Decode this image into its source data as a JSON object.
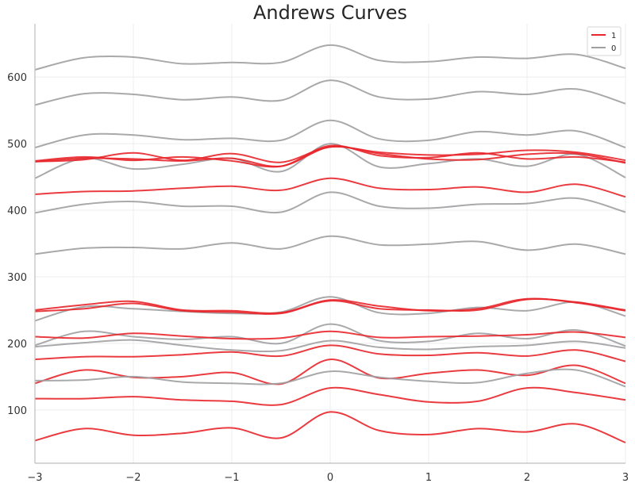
{
  "chart_data": {
    "type": "line",
    "title": "Andrews Curves",
    "xlabel": "",
    "ylabel": "",
    "xlim": [
      -3,
      3
    ],
    "ylim": [
      20,
      680
    ],
    "xticks": [
      -3,
      -2,
      -1,
      0,
      1,
      2,
      3
    ],
    "xtick_labels": [
      "−3",
      "−2",
      "−1",
      "0",
      "1",
      "2",
      "3"
    ],
    "yticks": [
      100,
      200,
      300,
      400,
      500,
      600
    ],
    "grid": true,
    "legend": {
      "position": "top-right",
      "entries": [
        {
          "label": "1",
          "color": "#e8262b"
        },
        {
          "label": "0",
          "color": "#a0a0a3"
        }
      ]
    },
    "x": [
      -3,
      -2.5,
      -2,
      -1.5,
      -1,
      -0.5,
      0,
      0.5,
      1,
      1.5,
      2,
      2.5,
      3
    ],
    "series": [
      {
        "class": "0",
        "color": "#a0a0a3",
        "values": [
          611,
          629,
          630,
          620,
          622,
          622,
          648,
          625,
          623,
          630,
          628,
          634,
          613
        ]
      },
      {
        "class": "0",
        "color": "#a0a0a3",
        "values": [
          558,
          575,
          574,
          566,
          570,
          565,
          595,
          570,
          567,
          578,
          574,
          582,
          560
        ]
      },
      {
        "class": "0",
        "color": "#a0a0a3",
        "values": [
          494,
          513,
          513,
          506,
          508,
          505,
          535,
          507,
          505,
          518,
          513,
          519,
          494
        ]
      },
      {
        "class": "0",
        "color": "#a0a0a3",
        "values": [
          448,
          478,
          462,
          469,
          478,
          458,
          500,
          465,
          470,
          477,
          466,
          484,
          449
        ]
      },
      {
        "class": "1",
        "color": "#e8262b",
        "values": [
          473,
          476,
          486,
          475,
          485,
          472,
          495,
          487,
          483,
          484,
          490,
          487,
          475
        ]
      },
      {
        "class": "1",
        "color": "#e8262b",
        "values": [
          473,
          478,
          477,
          474,
          478,
          466,
          495,
          485,
          477,
          476,
          484,
          485,
          471
        ]
      },
      {
        "class": "1",
        "color": "#e8262b",
        "values": [
          474,
          480,
          475,
          480,
          474,
          466,
          497,
          482,
          479,
          486,
          477,
          480,
          472
        ]
      },
      {
        "class": "1",
        "color": "#e8262b",
        "values": [
          424,
          428,
          429,
          433,
          436,
          430,
          448,
          433,
          431,
          435,
          427,
          439,
          420
        ]
      },
      {
        "class": "0",
        "color": "#a0a0a3",
        "values": [
          396,
          409,
          413,
          406,
          406,
          397,
          427,
          406,
          403,
          409,
          410,
          418,
          397
        ]
      },
      {
        "class": "0",
        "color": "#a0a0a3",
        "values": [
          334,
          343,
          344,
          342,
          351,
          342,
          361,
          348,
          349,
          353,
          340,
          349,
          334
        ]
      },
      {
        "class": "0",
        "color": "#a0a0a3",
        "values": [
          234,
          255,
          252,
          248,
          245,
          247,
          270,
          246,
          245,
          254,
          249,
          262,
          241
        ]
      },
      {
        "class": "1",
        "color": "#e8262b",
        "values": [
          250,
          258,
          263,
          250,
          249,
          246,
          265,
          256,
          249,
          252,
          267,
          261,
          249
        ]
      },
      {
        "class": "1",
        "color": "#e8262b",
        "values": [
          248,
          252,
          260,
          249,
          247,
          245,
          264,
          252,
          250,
          250,
          266,
          262,
          250
        ]
      },
      {
        "class": "0",
        "color": "#a0a0a3",
        "values": [
          197,
          218,
          210,
          206,
          210,
          200,
          229,
          204,
          203,
          215,
          207,
          220,
          196
        ]
      },
      {
        "class": "1",
        "color": "#e8262b",
        "values": [
          210,
          208,
          215,
          211,
          207,
          208,
          218,
          209,
          210,
          211,
          213,
          217,
          209
        ]
      },
      {
        "class": "0",
        "color": "#a0a0a3",
        "values": [
          195,
          201,
          205,
          197,
          190,
          189,
          204,
          194,
          191,
          195,
          197,
          203,
          193
        ]
      },
      {
        "class": "1",
        "color": "#e8262b",
        "values": [
          176,
          180,
          180,
          183,
          187,
          181,
          197,
          184,
          182,
          186,
          181,
          190,
          173
        ]
      },
      {
        "class": "1",
        "color": "#e8262b",
        "values": [
          140,
          160,
          149,
          150,
          156,
          139,
          176,
          148,
          155,
          160,
          152,
          167,
          140
        ]
      },
      {
        "class": "0",
        "color": "#a0a0a3",
        "values": [
          144,
          145,
          150,
          142,
          140,
          140,
          158,
          149,
          143,
          141,
          155,
          160,
          135
        ]
      },
      {
        "class": "1",
        "color": "#e8262b",
        "values": [
          117,
          117,
          120,
          115,
          113,
          108,
          133,
          123,
          112,
          113,
          133,
          126,
          115
        ]
      },
      {
        "class": "1",
        "color": "#e8262b",
        "values": [
          54,
          72,
          62,
          65,
          73,
          58,
          97,
          69,
          63,
          72,
          67,
          79,
          51
        ]
      }
    ]
  }
}
